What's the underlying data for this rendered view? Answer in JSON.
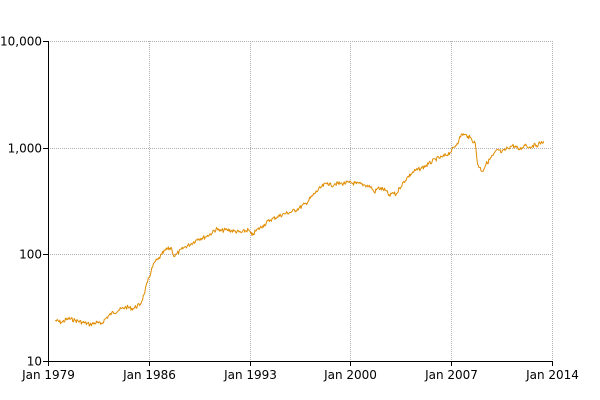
{
  "chart_data": {
    "type": "line",
    "title": "",
    "xlabel": "",
    "ylabel": "",
    "y_scale": "log",
    "ylim": [
      10,
      10000
    ],
    "xlim": [
      "1979-01",
      "2014-01"
    ],
    "grid": true,
    "legend": "none",
    "line_color": "#e08c00",
    "x_ticks": [
      {
        "value": "1979-01",
        "label": "Jan 1979"
      },
      {
        "value": "1986-01",
        "label": "Jan 1986"
      },
      {
        "value": "1993-01",
        "label": "Jan 1993"
      },
      {
        "value": "2000-01",
        "label": "Jan 2000"
      },
      {
        "value": "2007-01",
        "label": "Jan 2007"
      },
      {
        "value": "2014-01",
        "label": "Jan 2014"
      }
    ],
    "y_ticks": [
      {
        "value": 10,
        "label": "10"
      },
      {
        "value": 100,
        "label": "100"
      },
      {
        "value": 1000,
        "label": "1,000"
      },
      {
        "value": 10000,
        "label": "10,000"
      }
    ],
    "series": [
      {
        "x": [
          "1979-07",
          "1979-12",
          "1980-06",
          "1980-12",
          "1981-06",
          "1981-12",
          "1982-06",
          "1982-09",
          "1983-01",
          "1983-06",
          "1983-12",
          "1984-06",
          "1984-12",
          "1985-06",
          "1985-09",
          "1985-12",
          "1986-03",
          "1986-06",
          "1986-09",
          "1986-12",
          "1987-03",
          "1987-08",
          "1987-10",
          "1987-12",
          "1988-06",
          "1988-12",
          "1989-06",
          "1989-12",
          "1990-06",
          "1990-10",
          "1990-12",
          "1991-06",
          "1991-12",
          "1992-06",
          "1992-12",
          "1993-03",
          "1993-06",
          "1993-12",
          "1994-06",
          "1994-12",
          "1995-06",
          "1995-12",
          "1996-06",
          "1996-12",
          "1997-06",
          "1997-12",
          "1998-06",
          "1998-09",
          "1998-12",
          "1999-06",
          "1999-12",
          "2000-06",
          "2000-12",
          "2001-06",
          "2001-09",
          "2001-12",
          "2002-06",
          "2002-10",
          "2002-12",
          "2003-03",
          "2003-06",
          "2003-12",
          "2004-06",
          "2004-12",
          "2005-06",
          "2005-12",
          "2006-06",
          "2006-12",
          "2007-06",
          "2007-10",
          "2007-12",
          "2008-03",
          "2008-06",
          "2008-09",
          "2008-11",
          "2009-03",
          "2009-06",
          "2009-12",
          "2010-04",
          "2010-07",
          "2010-12",
          "2011-04",
          "2011-10",
          "2011-12",
          "2012-03",
          "2012-06",
          "2012-09",
          "2012-12",
          "2013-03",
          "2013-06"
        ],
        "y": [
          24,
          23,
          25,
          24,
          23,
          22,
          23,
          22,
          25,
          28,
          30,
          32,
          31,
          34,
          42,
          55,
          70,
          85,
          90,
          100,
          110,
          115,
          95,
          100,
          115,
          125,
          140,
          145,
          160,
          175,
          165,
          170,
          165,
          160,
          170,
          150,
          165,
          185,
          210,
          225,
          240,
          250,
          270,
          300,
          360,
          420,
          470,
          440,
          460,
          460,
          470,
          460,
          450,
          430,
          380,
          420,
          400,
          350,
          380,
          360,
          420,
          520,
          600,
          640,
          700,
          780,
          820,
          900,
          1100,
          1350,
          1320,
          1280,
          1200,
          1100,
          700,
          600,
          700,
          850,
          960,
          900,
          990,
          1050,
          960,
          1000,
          1080,
          1000,
          1050,
          1050,
          1100,
          1150
        ]
      }
    ]
  }
}
